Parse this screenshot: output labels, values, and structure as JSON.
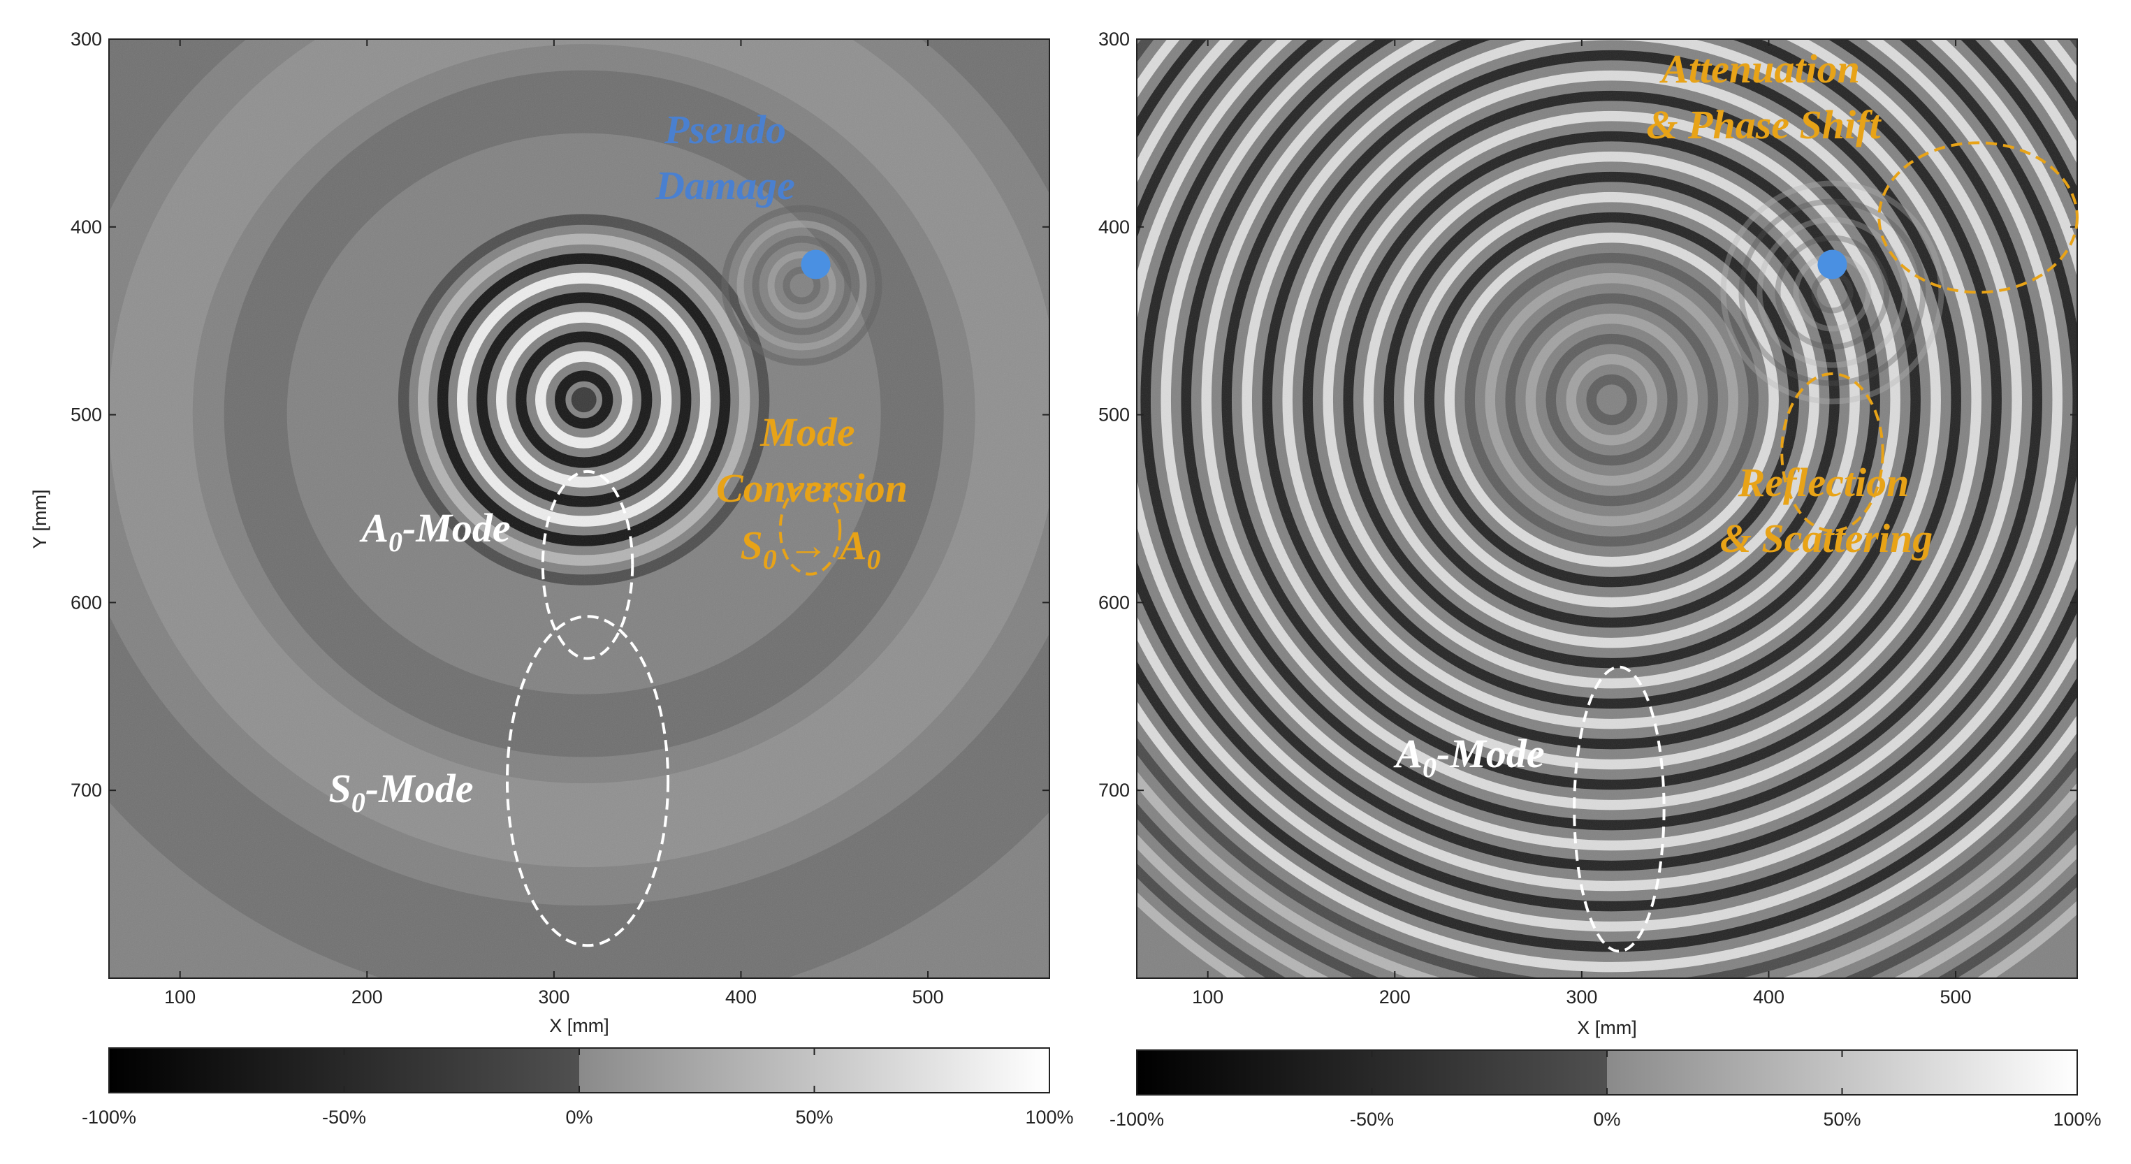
{
  "chart_data": [
    {
      "type": "heatmap",
      "xlabel": "X [mm]",
      "ylabel": "Y [mm]",
      "xlim": [
        62,
        565
      ],
      "ylim": [
        300,
        800
      ],
      "y_reversed": true,
      "xticks": [
        100,
        200,
        300,
        400,
        500
      ],
      "yticks": [
        300,
        400,
        500,
        600,
        700
      ],
      "colorbar": {
        "min": -100,
        "max": 100,
        "ticks": [
          "-100%",
          "-50%",
          "0%",
          "50%",
          "100%"
        ],
        "colormap": "grayscale"
      },
      "source_point": {
        "x": 316,
        "y": 492
      },
      "damage_point": {
        "x": 440,
        "y": 420
      },
      "annotations": {
        "pseudo_damage": [
          "Pseudo",
          "Damage"
        ],
        "mode_conversion": [
          "Mode",
          "Conversion"
        ],
        "s0_arrow_a0": {
          "s": "S",
          "s_sub": "0",
          "arrow": "→",
          "a": "A",
          "a_sub": "0"
        },
        "a0_mode": {
          "base": "A",
          "sub": "0",
          "suffix": "-Mode"
        },
        "s0_mode": {
          "base": "S",
          "sub": "0",
          "suffix": "-Mode"
        }
      },
      "regions": [
        {
          "name": "a0-mode-region",
          "cx": 318,
          "cy": 580,
          "rx": 24,
          "ry": 50,
          "color": "#ffffff"
        },
        {
          "name": "s0-mode-region",
          "cx": 318,
          "cy": 695,
          "rx": 43,
          "ry": 88,
          "color": "#ffffff"
        },
        {
          "name": "mode-conversion-region",
          "cx": 437,
          "cy": 561,
          "rx": 16,
          "ry": 24,
          "color": "#e8a317"
        }
      ]
    },
    {
      "type": "heatmap",
      "xlabel": "X [mm]",
      "ylabel": "",
      "xlim": [
        62,
        565
      ],
      "ylim": [
        300,
        800
      ],
      "y_reversed": true,
      "xticks": [
        100,
        200,
        300,
        400,
        500
      ],
      "yticks": [
        300,
        400,
        500,
        600,
        700
      ],
      "colorbar": {
        "min": -100,
        "max": 100,
        "ticks": [
          "-100%",
          "-50%",
          "0%",
          "50%",
          "100%"
        ],
        "colormap": "grayscale"
      },
      "source_point": {
        "x": 316,
        "y": 492
      },
      "damage_point": {
        "x": 434,
        "y": 420
      },
      "annotations": {
        "attenuation": [
          "Attenuation",
          "& Phase Shift"
        ],
        "reflection": [
          "Reflection",
          "& Scattering"
        ],
        "a0_mode": {
          "base": "A",
          "sub": "0",
          "suffix": "-Mode"
        }
      },
      "regions": [
        {
          "name": "a0-mode-region",
          "cx": 320,
          "cy": 710,
          "rx": 24,
          "ry": 76,
          "color": "#ffffff"
        },
        {
          "name": "attenuation-region",
          "cx": 512,
          "cy": 395,
          "rx": 53,
          "ry": 40,
          "color": "#e8a317"
        },
        {
          "name": "reflection-region",
          "cx": 434,
          "cy": 520,
          "rx": 27,
          "ry": 42,
          "color": "#e8a317"
        }
      ]
    }
  ],
  "colors": {
    "damage_marker": "#4a90e2",
    "pseudo_damage_text": "#4a80d0",
    "annotation_orange": "#e8a317",
    "annotation_white": "#ffffff",
    "background_gray": "#808080"
  }
}
